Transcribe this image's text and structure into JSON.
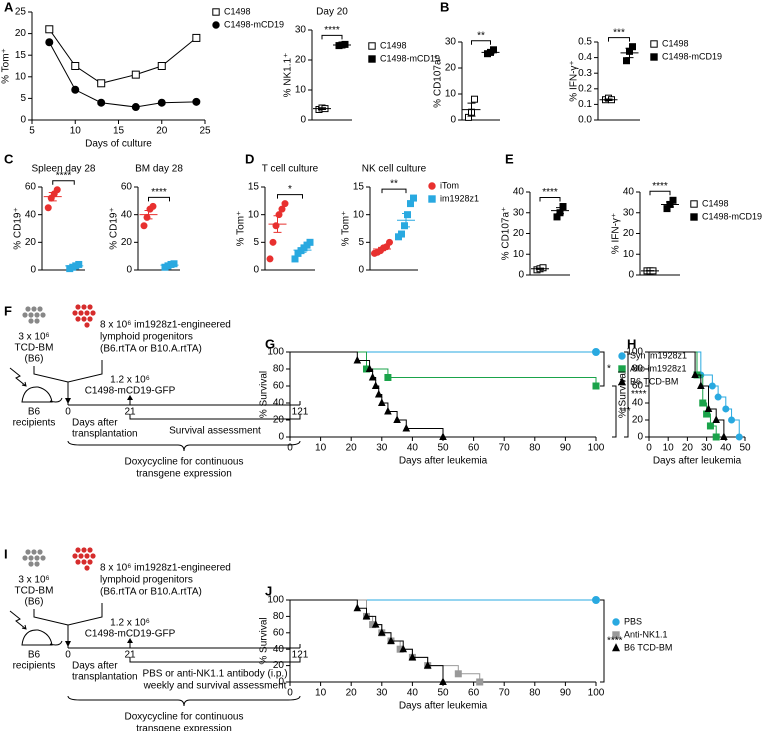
{
  "chart_data": [
    {
      "type": "line",
      "panel": "A",
      "xlabel": "Days of culture",
      "ylabel": "% Tom⁺",
      "xlim": [
        5,
        25
      ],
      "xticks": [
        5,
        10,
        15,
        20,
        25
      ],
      "ylim": [
        0,
        25
      ],
      "yticks": [
        0,
        5,
        10,
        15,
        20,
        25
      ],
      "legend": true,
      "series": [
        {
          "name": "C1498",
          "color": "#000000",
          "marker": "square-open",
          "x": [
            7,
            10,
            13,
            17,
            20,
            24
          ],
          "values": [
            21,
            12.5,
            8.5,
            10.5,
            12.5,
            19
          ]
        },
        {
          "name": "C1498-mCD19",
          "color": "#000000",
          "marker": "circle",
          "x": [
            7,
            10,
            13,
            17,
            20,
            24
          ],
          "values": [
            18,
            7,
            4,
            3,
            4,
            4.2
          ]
        }
      ]
    },
    {
      "type": "dot",
      "title": "Day 20",
      "ylabel": "% NK1.1⁺",
      "ylim": [
        0,
        30
      ],
      "yticks": [
        0,
        10,
        20,
        30
      ],
      "legend": true,
      "series": [
        {
          "name": "C1498",
          "color": "#000000",
          "marker": "square-open",
          "values": [
            3.5,
            4,
            3.8
          ],
          "mean": 3.8,
          "sem": 0.3
        },
        {
          "name": "C1498-mCD19",
          "color": "#000000",
          "marker": "square",
          "values": [
            24.8,
            25,
            25.2
          ],
          "mean": 25,
          "sem": 0.2
        }
      ],
      "significance": [
        {
          "label": "****",
          "between": [
            0,
            1
          ]
        }
      ]
    },
    {
      "type": "dot",
      "panel": "B",
      "ylabel": "% CD107a⁺",
      "ylim": [
        0,
        30
      ],
      "yticks": [
        0,
        10,
        20,
        30
      ],
      "legend": false,
      "series": [
        {
          "color": "#000000",
          "marker": "square-open",
          "values": [
            1,
            3,
            8
          ],
          "mean": 4,
          "sem": 2.5
        },
        {
          "color": "#000000",
          "marker": "square",
          "values": [
            25.5,
            26,
            27
          ],
          "mean": 26,
          "sem": 0.5
        }
      ],
      "significance": [
        {
          "label": "**",
          "between": [
            0,
            1
          ]
        }
      ]
    },
    {
      "type": "dot",
      "ylabel": "% IFN-γ⁺",
      "ylim": [
        0,
        0.5
      ],
      "yticks": [
        {
          "value": 0,
          "label": "0.0"
        },
        0.1,
        0.2,
        0.3,
        0.4,
        0.5
      ],
      "legend": true,
      "series": [
        {
          "name": "C1498",
          "color": "#000000",
          "marker": "square-open",
          "values": [
            0.13,
            0.14,
            0.13
          ],
          "mean": 0.13,
          "sem": 0.005
        },
        {
          "name": "C1498-mCD19",
          "color": "#000000",
          "marker": "square",
          "values": [
            0.38,
            0.44,
            0.47
          ],
          "mean": 0.43,
          "sem": 0.03
        }
      ],
      "significance": [
        {
          "label": "***",
          "between": [
            0,
            1
          ]
        }
      ]
    },
    {
      "type": "dot",
      "panel": "C",
      "title": "Spleen day 28",
      "ylabel": "% CD19⁺",
      "ylim": [
        0,
        60
      ],
      "yticks": [
        0,
        20,
        40,
        60
      ],
      "legend": false,
      "series": [
        {
          "color": "#e8302f",
          "marker": "circle",
          "values": [
            45,
            52,
            55,
            58
          ],
          "mean": 53,
          "sem": 3
        },
        {
          "color": "#29a9e0",
          "marker": "square",
          "values": [
            1,
            2,
            3,
            4
          ],
          "mean": 3,
          "sem": 0.7
        }
      ],
      "significance": [
        {
          "label": "****",
          "between": [
            0,
            1
          ]
        }
      ]
    },
    {
      "type": "dot",
      "title": "BM day 28",
      "ylabel": "% CD19⁺",
      "ylim": [
        0,
        60
      ],
      "yticks": [
        0,
        20,
        40,
        60
      ],
      "legend": false,
      "series": [
        {
          "color": "#e8302f",
          "marker": "circle",
          "values": [
            32,
            38,
            44,
            46
          ],
          "mean": 40,
          "sem": 3
        },
        {
          "color": "#29a9e0",
          "marker": "square",
          "values": [
            2,
            3,
            4,
            4.5
          ],
          "mean": 3.5,
          "sem": 0.6
        }
      ],
      "significance": [
        {
          "label": "****",
          "between": [
            0,
            1
          ]
        }
      ]
    },
    {
      "type": "dot",
      "panel": "D",
      "title": "T cell culture",
      "ylabel": "% Tom⁺",
      "ylim": [
        0,
        15
      ],
      "yticks": [
        0,
        5,
        10,
        15
      ],
      "legend": false,
      "series": [
        {
          "color": "#e8302f",
          "marker": "circle",
          "values": [
            2,
            5,
            8,
            10,
            11,
            12
          ],
          "mean": 8.3,
          "sem": 1.5
        },
        {
          "color": "#29a9e0",
          "marker": "square",
          "values": [
            2,
            3,
            3.5,
            4,
            4.5,
            5
          ],
          "mean": 3.6,
          "sem": 0.4
        }
      ],
      "significance": [
        {
          "label": "*",
          "between": [
            0,
            1
          ]
        }
      ]
    },
    {
      "type": "dot",
      "title": "NK cell culture",
      "ylabel": "% Tom⁺",
      "ylim": [
        0,
        15
      ],
      "yticks": [
        0,
        5,
        10,
        15
      ],
      "legend": true,
      "series": [
        {
          "name": "iTom",
          "color": "#e8302f",
          "marker": "circle",
          "values": [
            3,
            3.2,
            3.5,
            4,
            4.2,
            5
          ],
          "mean": 3.8,
          "sem": 0.3
        },
        {
          "name": "im1928z1",
          "color": "#29a9e0",
          "marker": "square",
          "values": [
            6,
            6.5,
            8,
            10,
            12,
            13
          ],
          "mean": 9,
          "sem": 1.2
        }
      ],
      "significance": [
        {
          "label": "**",
          "between": [
            0,
            1
          ]
        }
      ]
    },
    {
      "type": "dot",
      "panel": "E",
      "ylabel": "% CD107a⁺",
      "ylim": [
        0,
        40
      ],
      "yticks": [
        0,
        10,
        20,
        30,
        40
      ],
      "legend": false,
      "series": [
        {
          "color": "#000000",
          "marker": "square-open",
          "values": [
            2.5,
            3,
            3.5
          ],
          "mean": 3,
          "sem": 0.3
        },
        {
          "color": "#000000",
          "marker": "square",
          "values": [
            28,
            30,
            33
          ],
          "mean": 31,
          "sem": 1.5
        }
      ],
      "significance": [
        {
          "label": "****",
          "between": [
            0,
            1
          ]
        }
      ]
    },
    {
      "type": "dot",
      "ylabel": "% IFN-γ⁺",
      "ylim": [
        0,
        40
      ],
      "yticks": [
        0,
        10,
        20,
        30,
        40
      ],
      "legend": true,
      "series": [
        {
          "name": "C1498",
          "color": "#000000",
          "marker": "square-open",
          "values": [
            2,
            2,
            2
          ],
          "mean": 2,
          "sem": 0.1
        },
        {
          "name": "C1498-mCD19",
          "color": "#000000",
          "marker": "square",
          "values": [
            32,
            34,
            36
          ],
          "mean": 34,
          "sem": 1.2
        }
      ],
      "significance": [
        {
          "label": "****",
          "between": [
            0,
            1
          ]
        }
      ]
    },
    {
      "type": "survival",
      "panel": "G",
      "xlabel": "Days after leukemia",
      "ylabel": "% Survival",
      "xlim": [
        0,
        100
      ],
      "xticks": [
        0,
        10,
        20,
        30,
        40,
        50,
        60,
        70,
        80,
        90,
        100
      ],
      "ylim": [
        0,
        100
      ],
      "yticks": [
        0,
        20,
        40,
        60,
        80,
        100
      ],
      "legend": true,
      "series": [
        {
          "name": "Syn im1928z1",
          "color": "#29a9e0",
          "marker": "circle",
          "x": [
            0,
            100
          ],
          "values": [
            100,
            100
          ]
        },
        {
          "name": "Allo im1928z1",
          "color": "#1aa34a",
          "marker": "square",
          "x": [
            0,
            25,
            32,
            100
          ],
          "values": [
            100,
            80,
            70,
            60
          ]
        },
        {
          "name": "B6 TCD-BM",
          "color": "#000000",
          "marker": "triangle",
          "x": [
            0,
            22,
            26,
            27,
            28,
            29,
            30,
            32,
            35,
            38,
            50
          ],
          "values": [
            100,
            90,
            80,
            70,
            60,
            50,
            40,
            30,
            20,
            10,
            0
          ]
        }
      ],
      "significance": [
        {
          "label": "*",
          "between": [
            0,
            1
          ]
        },
        {
          "label": "***",
          "between": [
            1,
            2
          ]
        },
        {
          "label": "****",
          "between": [
            0,
            2
          ]
        }
      ]
    },
    {
      "type": "survival",
      "panel": "H",
      "xlabel": "Days after leukemia",
      "ylabel": "% Survival",
      "xlim": [
        0,
        50
      ],
      "xticks": [
        0,
        10,
        20,
        30,
        40,
        50
      ],
      "ylim": [
        0,
        100
      ],
      "yticks": [
        0,
        20,
        40,
        60,
        80,
        100
      ],
      "legend": false,
      "series": [
        {
          "color": "#29a9e0",
          "marker": "circle",
          "x": [
            0,
            27,
            33,
            36,
            40,
            43,
            47
          ],
          "values": [
            100,
            73,
            60,
            47,
            33,
            20,
            0
          ]
        },
        {
          "color": "#1aa34a",
          "marker": "square",
          "x": [
            0,
            25,
            28,
            30,
            32,
            35
          ],
          "values": [
            100,
            73,
            40,
            27,
            13,
            0
          ]
        },
        {
          "color": "#000000",
          "marker": "triangle",
          "x": [
            0,
            24,
            27,
            31,
            35,
            39
          ],
          "values": [
            100,
            73,
            60,
            33,
            20,
            0
          ]
        }
      ]
    },
    {
      "type": "survival",
      "panel": "J",
      "xlabel": "Days after leukemia",
      "ylabel": "% Survival",
      "xlim": [
        0,
        100
      ],
      "xticks": [
        0,
        10,
        20,
        30,
        40,
        50,
        60,
        70,
        80,
        90,
        100
      ],
      "ylim": [
        0,
        100
      ],
      "yticks": [
        0,
        20,
        40,
        60,
        80,
        100
      ],
      "legend": true,
      "series": [
        {
          "name": "PBS",
          "color": "#29a9e0",
          "marker": "circle",
          "x": [
            0,
            100
          ],
          "values": [
            100,
            100
          ]
        },
        {
          "name": "Anti-NK1.1",
          "color": "#999999",
          "marker": "square",
          "x": [
            0,
            25,
            27,
            30,
            33,
            36,
            40,
            45,
            55,
            62
          ],
          "values": [
            100,
            80,
            70,
            60,
            50,
            40,
            30,
            20,
            10,
            0
          ]
        },
        {
          "name": "B6 TCD-BM",
          "color": "#000000",
          "marker": "triangle",
          "x": [
            0,
            22,
            25,
            28,
            30,
            33,
            37,
            40,
            45,
            50
          ],
          "values": [
            100,
            90,
            80,
            70,
            60,
            50,
            40,
            30,
            20,
            0
          ]
        }
      ],
      "significance": [
        {
          "label": "****",
          "between": [
            0,
            1
          ]
        }
      ]
    }
  ],
  "diagrams": [
    {
      "panel": "F",
      "donor_dose": "3 x 10⁶",
      "donor_name": "TCD-BM",
      "donor_strain": "(B6)",
      "prog": [
        "8 x 10⁶ im1928z1-engineered",
        "lymphoid progenitors",
        "(B6.rtTA or B10.A.rtTA)"
      ],
      "leuk_dose": "1.2 x 10⁶",
      "leuk_name": "C1498-mCD19-GFP",
      "recipient": [
        "B6",
        "recipients"
      ],
      "day0": "0",
      "day21": "21",
      "day121": "121",
      "days_label": [
        "Days after",
        "transplantation"
      ],
      "assessment": [
        "Survival assessment"
      ],
      "dox": [
        "Doxycycline for continuous",
        "transgene expression"
      ]
    },
    {
      "panel": "I",
      "donor_dose": "3 x 10⁶",
      "donor_name": "TCD-BM",
      "donor_strain": "(B6)",
      "prog": [
        "8 x 10⁶ im1928z1-engineered",
        "lymphoid progenitors",
        "(B6.rtTA or B10.A.rtTA)"
      ],
      "leuk_dose": "1.2 x 10⁶",
      "leuk_name": "C1498-mCD19-GFP",
      "recipient": [
        "B6",
        "recipients"
      ],
      "day0": "0",
      "day21": "21",
      "day121": "121",
      "days_label": [
        "Days after",
        "transplantation"
      ],
      "assessment": [
        "PBS or anti-NK1.1 antibody (i.p.)",
        "weekly and survival assessment"
      ],
      "dox": [
        "Doxycycline for continuous",
        "transgene expression"
      ]
    }
  ]
}
